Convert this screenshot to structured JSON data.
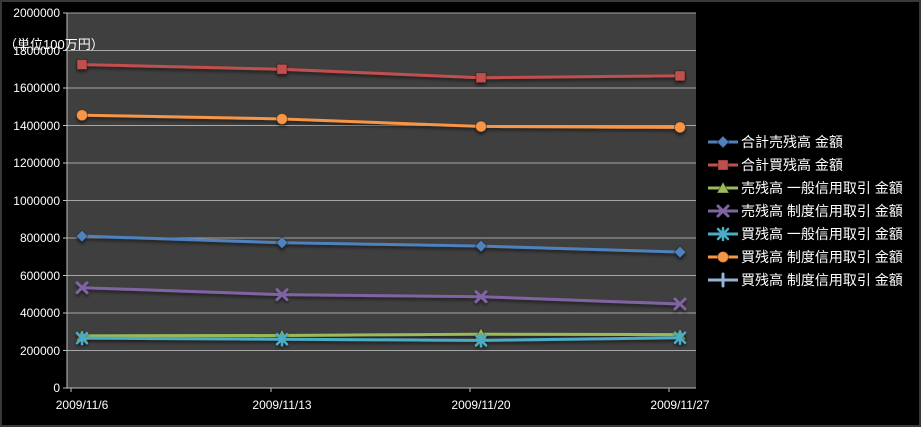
{
  "unit_label": "（単位100万円）",
  "colors": {
    "page_bg": "#000000",
    "plot_bg": "#3F3F3F",
    "gridline": "#A6A6A6",
    "axis_line": "#BFBFBF",
    "axis_text": "#FFFFFF"
  },
  "chart_data": {
    "type": "line",
    "title": "",
    "xlabel": "",
    "ylabel": "（単位100万円）",
    "categories": [
      "2009/11/6",
      "2009/11/13",
      "2009/11/20",
      "2009/11/27"
    ],
    "yticks": [
      0,
      200000,
      400000,
      600000,
      800000,
      1000000,
      1200000,
      1400000,
      1600000,
      1800000,
      2000000
    ],
    "ylim": [
      0,
      2000000
    ],
    "grid": true,
    "legend_position": "right",
    "series": [
      {
        "name": "合計売残高 金額",
        "color": "#4F81BD",
        "marker": "diamond",
        "values": [
          810000,
          775000,
          757000,
          725000
        ]
      },
      {
        "name": "合計買残高 金額",
        "color": "#C0504D",
        "marker": "square",
        "values": [
          1725000,
          1700000,
          1655000,
          1665000
        ]
      },
      {
        "name": "売残高 一般信用取引 金額",
        "color": "#9BBB59",
        "marker": "triangle",
        "values": [
          278000,
          280000,
          287000,
          285000
        ]
      },
      {
        "name": "売残高 制度信用取引 金額",
        "color": "#8064A2",
        "marker": "x",
        "values": [
          535000,
          498000,
          487000,
          448000
        ]
      },
      {
        "name": "買残高 一般信用取引 金額",
        "color": "#4BACC6",
        "marker": "asterisk",
        "values": [
          266000,
          260000,
          254000,
          268000
        ]
      },
      {
        "name": "買残高 制度信用取引 金額",
        "color": "#F79646",
        "marker": "circle",
        "values": [
          1455000,
          1435000,
          1395000,
          1390000
        ]
      },
      {
        "name": "買残高 制度信用取引 金額",
        "color": "#95B3D7",
        "marker": "plus",
        "values": []
      }
    ]
  }
}
